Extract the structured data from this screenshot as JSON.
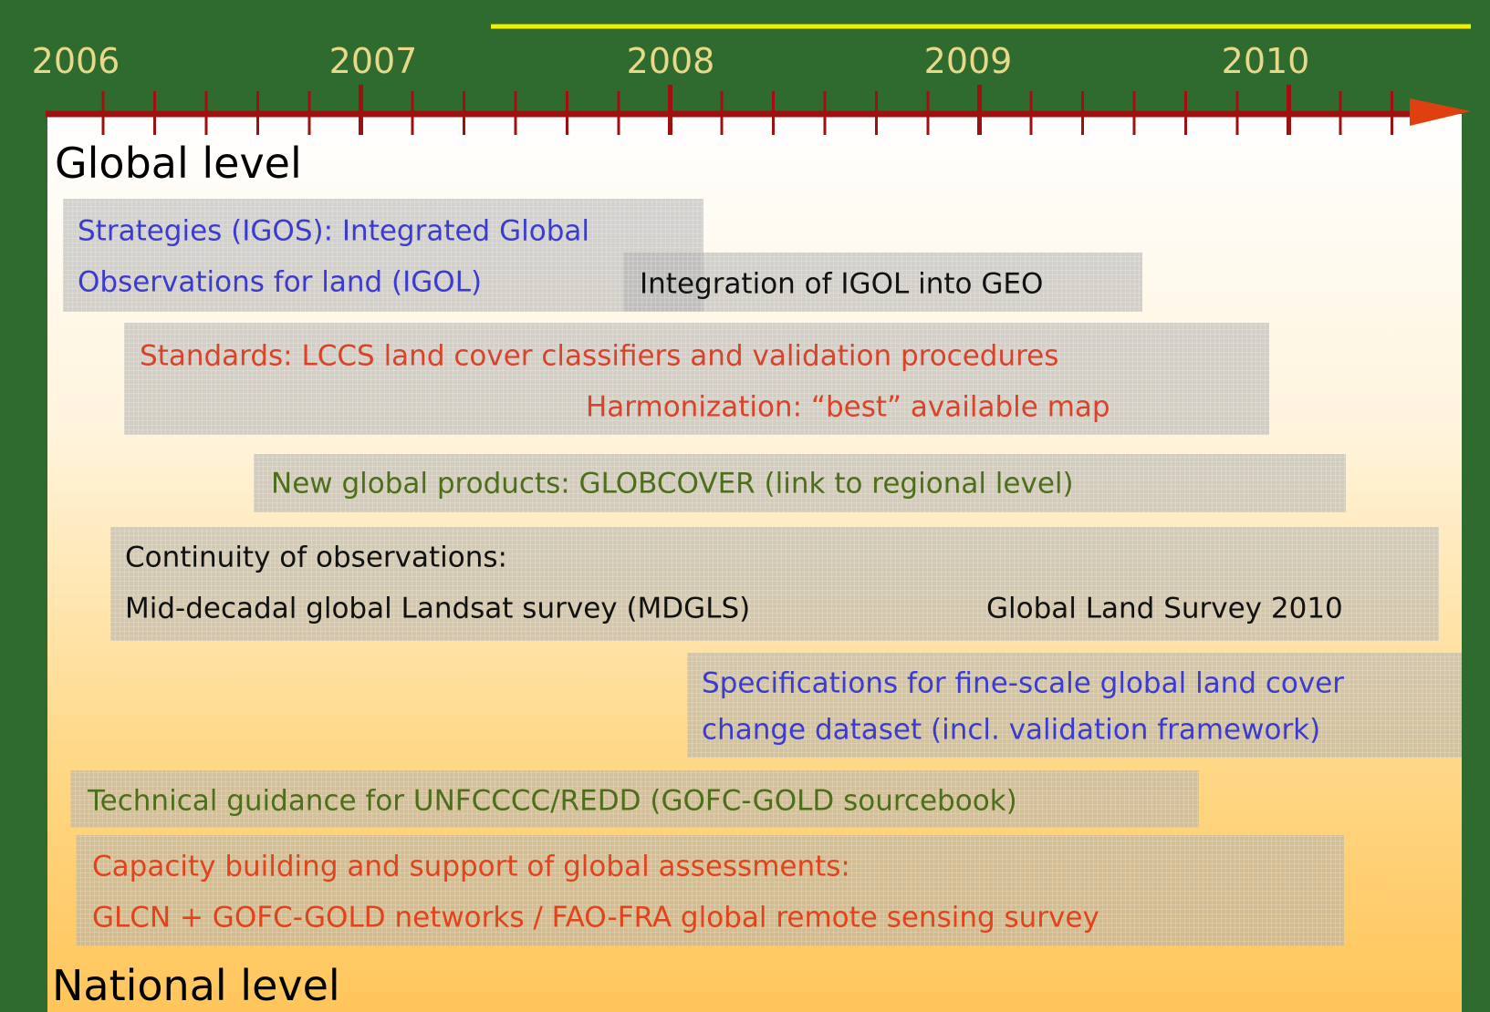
{
  "timeline": {
    "years": [
      "2006",
      "2007",
      "2008",
      "2009",
      "2010"
    ]
  },
  "sections": [
    "Global level",
    "National level"
  ],
  "items": [
    {
      "lines": [
        "Strategies (IGOS): Integrated Global",
        "Observations for land (IGOL)"
      ]
    },
    {
      "lines": [
        "Integration of IGOL into GEO"
      ]
    },
    {
      "lines": [
        "Standards: LCCS land cover classifiers and validation procedures",
        "Harmonization: “best” available map"
      ]
    },
    {
      "lines": [
        "New global products: GLOBCOVER (link to regional level)"
      ]
    },
    {
      "lines": [
        "Continuity of observations:",
        "Mid-decadal global Landsat survey (MDGLS)",
        "Global Land Survey 2010"
      ]
    },
    {
      "lines": [
        "Specifications for fine-scale global land cover",
        "change dataset (incl. validation framework)"
      ]
    },
    {
      "lines": [
        "Technical guidance for UNFCCCC/REDD (GOFC-GOLD sourcebook)"
      ]
    },
    {
      "lines": [
        "Capacity building and support of global assessments:",
        "GLCN + GOFC-GOLD networks / FAO-FRA global remote sensing survey"
      ]
    }
  ]
}
